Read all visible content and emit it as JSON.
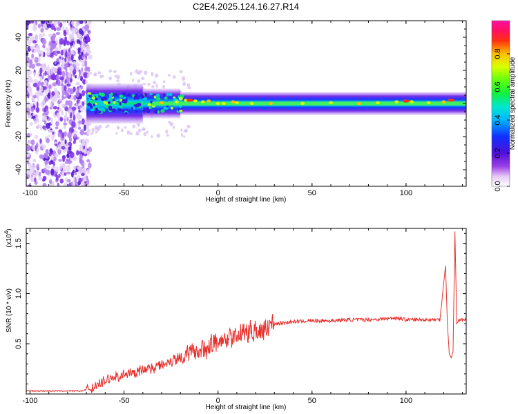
{
  "title": "C2E4.2025.124.16.27.R14",
  "chart_data": [
    {
      "type": "heatmap",
      "title": "C2E4.2025.124.16.27.R14",
      "xlabel": "Height of straight line (km)",
      "ylabel": "Frequency (Hz)",
      "xlim": [
        -102,
        132
      ],
      "ylim": [
        -50,
        50
      ],
      "xticks": [
        -100,
        -50,
        0,
        50,
        100
      ],
      "yticks": [
        -40,
        -20,
        0,
        20,
        40
      ],
      "x_tick_labels": [
        "-100",
        "-50",
        "0",
        "50",
        "100"
      ],
      "y_tick_labels": [
        "-40",
        "-20",
        "0",
        "20",
        "40"
      ],
      "colorbar": {
        "label": "Normalized spectral amplitude",
        "range": [
          0,
          1
        ],
        "ticks": [
          0.0,
          0.2,
          0.4,
          0.6,
          0.8
        ],
        "tick_labels": [
          "0.0",
          "0.2",
          "0.4",
          "0.6",
          "0.8"
        ],
        "colormap": "rainbow (purple-blue-cyan-green-yellow-red-magenta)"
      },
      "description_values": {
        "noise_region_x": [
          -102,
          -70
        ],
        "signal_band_center_hz": 0,
        "peak_amplitude_regions_km": [
          -15,
          100,
          125
        ]
      }
    },
    {
      "type": "line",
      "xlabel": "Height of straight line (km)",
      "ylabel": "SNR (10 * v/v)",
      "y_multiplier_label": "(x10",
      "y_multiplier_exp": "4",
      "y_multiplier_close": ")",
      "xlim": [
        -102,
        132
      ],
      "ylim": [
        0,
        1.65
      ],
      "xticks": [
        -100,
        -50,
        0,
        50,
        100
      ],
      "yticks": [
        0.5,
        1.0,
        1.5
      ],
      "x_tick_labels": [
        "-100",
        "-50",
        "0",
        "50",
        "100"
      ],
      "y_tick_labels": [
        "0.5",
        "1.0",
        "1.5"
      ],
      "line_color": "#e8302c",
      "series": [
        {
          "x": [
            -102,
            -90,
            -80,
            -72,
            -68,
            -62,
            -58,
            -54,
            -50,
            -46,
            -42,
            -38,
            -34,
            -30,
            -26,
            -22,
            -18,
            -14,
            -10,
            -6,
            -2,
            2,
            6,
            10,
            14,
            18,
            22,
            26,
            30,
            35,
            40,
            50,
            60,
            70,
            80,
            90,
            95,
            100,
            110,
            118,
            121,
            122,
            123,
            124,
            125,
            126,
            127,
            128,
            130,
            132
          ],
          "values": [
            0.03,
            0.03,
            0.03,
            0.03,
            0.06,
            0.12,
            0.16,
            0.18,
            0.2,
            0.22,
            0.24,
            0.26,
            0.28,
            0.31,
            0.34,
            0.37,
            0.4,
            0.43,
            0.46,
            0.49,
            0.52,
            0.55,
            0.58,
            0.61,
            0.63,
            0.65,
            0.67,
            0.69,
            0.7,
            0.71,
            0.72,
            0.73,
            0.73,
            0.74,
            0.74,
            0.75,
            0.76,
            0.74,
            0.74,
            0.74,
            1.28,
            0.7,
            0.4,
            0.36,
            0.42,
            1.62,
            0.7,
            0.73,
            0.74,
            0.74
          ]
        }
      ]
    }
  ]
}
